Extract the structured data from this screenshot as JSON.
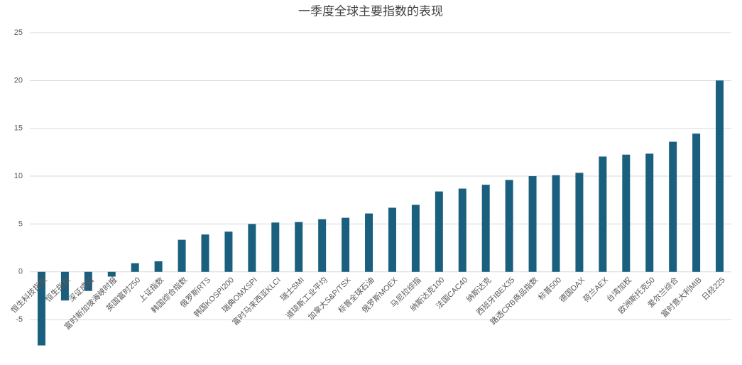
{
  "chart_data": {
    "type": "bar",
    "title": "一季度全球主要指数的表现",
    "categories": [
      "恒生科技指数",
      "恒生指数",
      "深证成指",
      "富时新加坡海峡时报",
      "英国富时250",
      "上证指数",
      "韩国综合指数",
      "俄罗斯RTS",
      "韩国KOSPI200",
      "瑞典OMXSPI",
      "富时马来西亚KLCI",
      "瑞士SMI",
      "道琼斯工业平均",
      "加拿大S&P/TSX",
      "标普全球石油",
      "俄罗斯MOEX",
      "马尼拉综指",
      "纳斯达克100",
      "法国CAC40",
      "纳斯达克",
      "西班牙IBEX35",
      "路透CRB商品指数",
      "标普500",
      "德国DAX",
      "荷兰AEX",
      "台湾加权",
      "欧洲斯托克50",
      "爱尔兰综合",
      "富时意大利MIB",
      "日经225"
    ],
    "values": [
      -7.7,
      -3.0,
      -2.0,
      -0.5,
      0.9,
      1.1,
      3.35,
      3.9,
      4.2,
      5.0,
      5.15,
      5.2,
      5.5,
      5.65,
      6.1,
      6.7,
      7.0,
      8.4,
      8.7,
      9.1,
      9.6,
      10.0,
      10.1,
      10.35,
      12.05,
      12.25,
      12.35,
      13.6,
      14.45,
      20.0
    ],
    "color": "#1a5f7e",
    "ylim": [
      -9,
      25
    ],
    "yticks": [
      -5,
      0,
      5,
      10,
      15,
      20,
      25
    ],
    "grid": true
  }
}
